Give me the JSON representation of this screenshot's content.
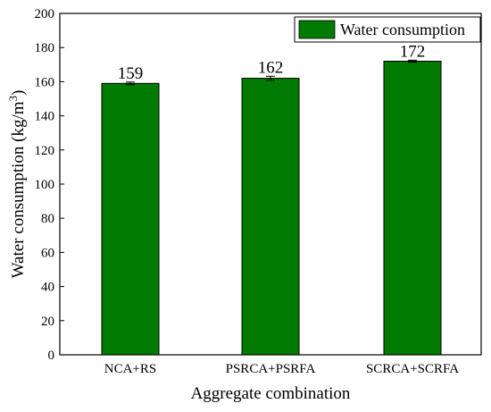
{
  "chart_data": {
    "type": "bar",
    "categories": [
      "NCA+RS",
      "PSRCA+PSRFA",
      "SCRCA+SCRFA"
    ],
    "series": [
      {
        "name": "Water consumption",
        "values": [
          159,
          162,
          172
        ],
        "errors": [
          0.8,
          1.2,
          0.6
        ],
        "color": "#007a00"
      }
    ],
    "data_labels": [
      "159",
      "162",
      "172"
    ],
    "xlabel": "Aggregate combination",
    "ylabel_main": "Water consumption (kg/m",
    "ylabel_sup": "3",
    "ylabel_close": ")",
    "ylim": [
      0,
      200
    ],
    "yticks": [
      0,
      20,
      40,
      60,
      80,
      100,
      120,
      140,
      160,
      180,
      200
    ],
    "legend_placement": "top-right",
    "grid": false
  }
}
